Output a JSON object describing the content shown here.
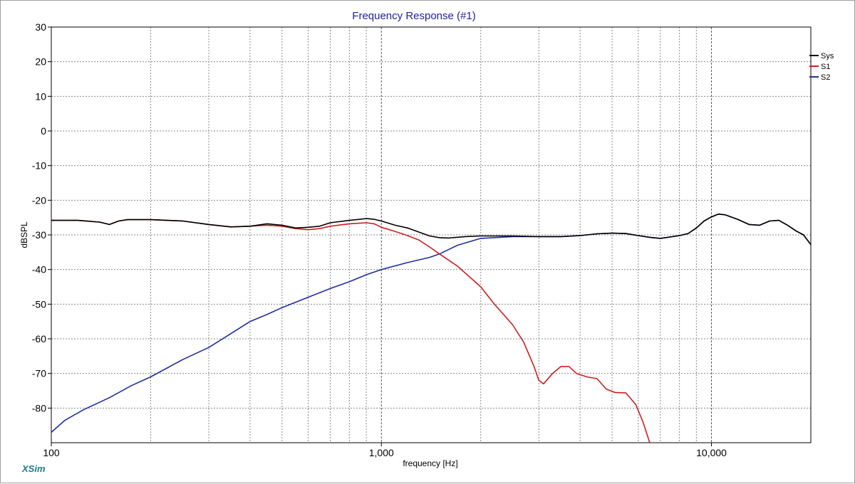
{
  "chart_data": {
    "type": "line",
    "title": "Frequency Response (#1)",
    "xlabel": "frequency [Hz]",
    "ylabel": "dBSPL",
    "x_scale": "log",
    "xlim": [
      100,
      20000
    ],
    "ylim": [
      -90,
      30
    ],
    "y_ticks": [
      "30",
      "20",
      "10",
      "0",
      "-10",
      "-20",
      "-30",
      "-40",
      "-50",
      "-60",
      "-70",
      "-80"
    ],
    "x_ticks": [
      {
        "value": 100,
        "label": "100"
      },
      {
        "value": 1000,
        "label": "1,000"
      },
      {
        "value": 10000,
        "label": "10,000"
      }
    ],
    "grid": true,
    "legend_position": "top-right",
    "series": [
      {
        "name": "Sys",
        "color": "#000000",
        "points": [
          [
            100,
            -25.8
          ],
          [
            120,
            -25.8
          ],
          [
            140,
            -26.3
          ],
          [
            150,
            -27
          ],
          [
            160,
            -26
          ],
          [
            170,
            -25.6
          ],
          [
            200,
            -25.6
          ],
          [
            250,
            -26
          ],
          [
            300,
            -27
          ],
          [
            350,
            -27.7
          ],
          [
            400,
            -27.5
          ],
          [
            450,
            -26.8
          ],
          [
            500,
            -27.2
          ],
          [
            550,
            -28
          ],
          [
            600,
            -27.8
          ],
          [
            650,
            -27.5
          ],
          [
            700,
            -26.5
          ],
          [
            800,
            -25.8
          ],
          [
            900,
            -25.3
          ],
          [
            950,
            -25.5
          ],
          [
            1000,
            -26
          ],
          [
            1100,
            -27.2
          ],
          [
            1200,
            -28
          ],
          [
            1300,
            -29.2
          ],
          [
            1400,
            -30.3
          ],
          [
            1500,
            -30.8
          ],
          [
            1600,
            -30.9
          ],
          [
            1800,
            -30.5
          ],
          [
            2000,
            -30.3
          ],
          [
            2500,
            -30.3
          ],
          [
            3000,
            -30.5
          ],
          [
            3500,
            -30.5
          ],
          [
            4000,
            -30.2
          ],
          [
            4500,
            -29.7
          ],
          [
            5000,
            -29.5
          ],
          [
            5500,
            -29.6
          ],
          [
            6000,
            -30.2
          ],
          [
            6500,
            -30.7
          ],
          [
            7000,
            -31
          ],
          [
            8000,
            -30.2
          ],
          [
            8500,
            -29.6
          ],
          [
            9000,
            -28
          ],
          [
            9500,
            -26
          ],
          [
            10000,
            -24.8
          ],
          [
            10500,
            -24
          ],
          [
            11000,
            -24.2
          ],
          [
            12000,
            -25.5
          ],
          [
            13000,
            -27
          ],
          [
            14000,
            -27.2
          ],
          [
            15000,
            -26
          ],
          [
            16000,
            -25.8
          ],
          [
            17000,
            -27.2
          ],
          [
            18000,
            -28.8
          ],
          [
            19000,
            -30
          ],
          [
            20000,
            -32.8
          ]
        ]
      },
      {
        "name": "S1",
        "color": "#cc1f1f",
        "points": [
          [
            100,
            -25.8
          ],
          [
            120,
            -25.8
          ],
          [
            140,
            -26.3
          ],
          [
            150,
            -27
          ],
          [
            160,
            -26
          ],
          [
            170,
            -25.6
          ],
          [
            200,
            -25.6
          ],
          [
            250,
            -26
          ],
          [
            300,
            -27
          ],
          [
            350,
            -27.7
          ],
          [
            400,
            -27.5
          ],
          [
            450,
            -27.2
          ],
          [
            500,
            -27.5
          ],
          [
            550,
            -28.2
          ],
          [
            600,
            -28.5
          ],
          [
            650,
            -28.2
          ],
          [
            700,
            -27.5
          ],
          [
            800,
            -26.8
          ],
          [
            900,
            -26.5
          ],
          [
            950,
            -26.8
          ],
          [
            1000,
            -27.8
          ],
          [
            1100,
            -29
          ],
          [
            1200,
            -30.2
          ],
          [
            1300,
            -31.5
          ],
          [
            1400,
            -33.5
          ],
          [
            1500,
            -35.5
          ],
          [
            1700,
            -39
          ],
          [
            2000,
            -45
          ],
          [
            2200,
            -50
          ],
          [
            2500,
            -56
          ],
          [
            2700,
            -61
          ],
          [
            2900,
            -68
          ],
          [
            3000,
            -72
          ],
          [
            3100,
            -73
          ],
          [
            3300,
            -70
          ],
          [
            3500,
            -68
          ],
          [
            3700,
            -68
          ],
          [
            3900,
            -70
          ],
          [
            4200,
            -71
          ],
          [
            4500,
            -71.5
          ],
          [
            4800,
            -74.5
          ],
          [
            5100,
            -75.5
          ],
          [
            5500,
            -75.6
          ],
          [
            5900,
            -79
          ],
          [
            6200,
            -84
          ],
          [
            6500,
            -90
          ]
        ]
      },
      {
        "name": "S2",
        "color": "#1f2fa0",
        "points": [
          [
            100,
            -87
          ],
          [
            110,
            -83.5
          ],
          [
            125,
            -80.5
          ],
          [
            150,
            -77
          ],
          [
            175,
            -73.5
          ],
          [
            200,
            -71
          ],
          [
            250,
            -66
          ],
          [
            300,
            -62.5
          ],
          [
            350,
            -58.5
          ],
          [
            400,
            -55
          ],
          [
            450,
            -53
          ],
          [
            500,
            -51
          ],
          [
            600,
            -48
          ],
          [
            700,
            -45.5
          ],
          [
            800,
            -43.5
          ],
          [
            900,
            -41.5
          ],
          [
            1000,
            -40
          ],
          [
            1200,
            -38
          ],
          [
            1400,
            -36.5
          ],
          [
            1500,
            -35.5
          ],
          [
            1700,
            -33
          ],
          [
            2000,
            -31
          ],
          [
            2500,
            -30.5
          ],
          [
            3000,
            -30.5
          ],
          [
            3500,
            -30.5
          ],
          [
            4000,
            -30.2
          ],
          [
            4500,
            -29.7
          ],
          [
            5000,
            -29.5
          ],
          [
            5500,
            -29.6
          ],
          [
            6000,
            -30.2
          ],
          [
            6500,
            -30.7
          ],
          [
            7000,
            -31
          ],
          [
            8000,
            -30.2
          ],
          [
            8500,
            -29.6
          ],
          [
            9000,
            -28
          ],
          [
            9500,
            -26
          ],
          [
            10000,
            -24.8
          ],
          [
            10500,
            -24
          ],
          [
            11000,
            -24.2
          ],
          [
            12000,
            -25.5
          ],
          [
            13000,
            -27
          ],
          [
            14000,
            -27.2
          ],
          [
            15000,
            -26
          ],
          [
            16000,
            -25.8
          ],
          [
            17000,
            -27.2
          ],
          [
            18000,
            -28.8
          ],
          [
            19000,
            -30
          ],
          [
            20000,
            -32.8
          ]
        ]
      }
    ],
    "brand": "XSim"
  }
}
